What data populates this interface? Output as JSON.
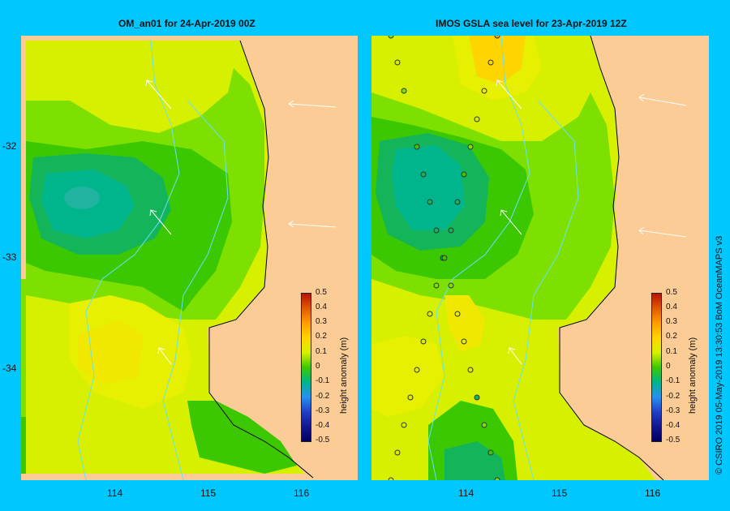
{
  "panels": [
    {
      "title": "OM_an01  for 24-Apr-2019 00Z",
      "lat_ticks": [
        "-32",
        "-33",
        "-34"
      ],
      "lon_ticks": [
        "114",
        "115",
        "116"
      ]
    },
    {
      "title": "IMOS GSLA sea level   for 23-Apr-2019 12Z",
      "lon_ticks": [
        "114",
        "115",
        "116"
      ]
    }
  ],
  "colorbar": {
    "label": "height anomaly  (m)",
    "ticks": [
      "0.5",
      "0.4",
      "0.3",
      "0.2",
      "0.1",
      "0",
      "-0.1",
      "-0.2",
      "-0.3",
      "-0.4",
      "-0.5"
    ],
    "range": [
      -0.5,
      0.5
    ]
  },
  "copyright": "© CSIRO 2019   05-May-2019 13:30:53 BoM OceanMAPS v3",
  "colors": {
    "background": "#00c8ff",
    "land": "#fccc96",
    "current_lines": "#66e0ff"
  }
}
